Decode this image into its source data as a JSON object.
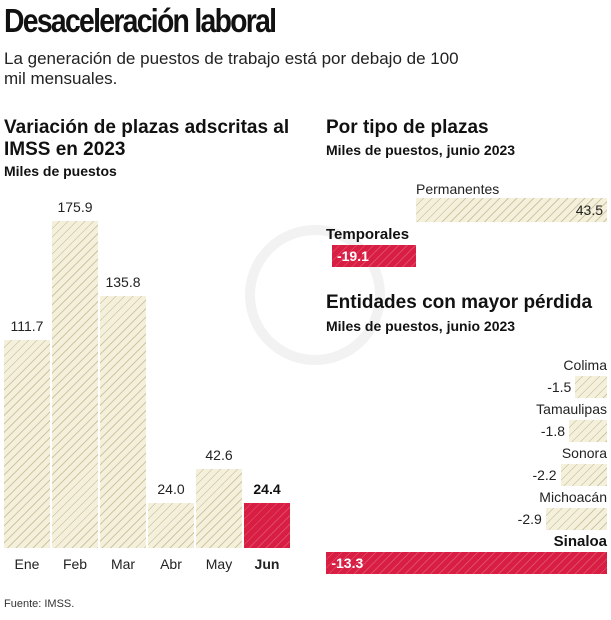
{
  "header": {
    "title": "Desaceleración laboral",
    "subtitle": "La generación de puestos de trabajo está por debajo de 100 mil mensuales."
  },
  "footer": {
    "source": "Fuente: IMSS."
  },
  "colors": {
    "hatch_fill": "#f4f0dc",
    "highlight": "#d81e43"
  },
  "chart_data": [
    {
      "type": "bar",
      "title": "Variación de plazas adscritas al IMSS en 2023",
      "subtitle": "Miles de puestos",
      "categories": [
        "Ene",
        "Feb",
        "Mar",
        "Abr",
        "May",
        "Jun"
      ],
      "values": [
        111.7,
        175.9,
        135.8,
        24.0,
        42.6,
        24.4
      ],
      "value_labels": [
        "111.7",
        "175.9",
        "135.8",
        "24.0",
        "42.6",
        "24.4"
      ],
      "highlight": "Jun",
      "ylim": [
        0,
        175.9
      ],
      "grid": false
    },
    {
      "type": "bar",
      "orientation": "horizontal",
      "title": "Por tipo de plazas",
      "subtitle": "Miles de puestos, junio 2023",
      "categories": [
        "Permanentes",
        "Temporales"
      ],
      "values": [
        43.5,
        -19.1
      ],
      "value_labels": [
        "43.5",
        "-19.1"
      ],
      "highlight": "Temporales"
    },
    {
      "type": "bar",
      "orientation": "horizontal",
      "title": "Entidades con mayor pérdida",
      "subtitle": "Miles de puestos, junio 2023",
      "categories": [
        "Colima",
        "Tamaulipas",
        "Sonora",
        "Michoacán",
        "Sinaloa"
      ],
      "values": [
        -1.5,
        -1.8,
        -2.2,
        -2.9,
        -13.3
      ],
      "value_labels": [
        "-1.5",
        "-1.8",
        "-2.2",
        "-2.9",
        "-13.3"
      ],
      "highlight": "Sinaloa"
    }
  ]
}
